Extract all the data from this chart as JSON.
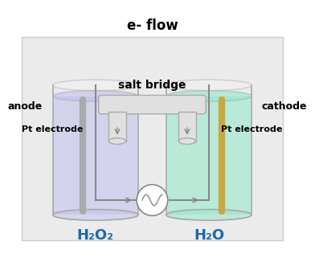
{
  "bg_color": "#ebebeb",
  "white_bg": "#ffffff",
  "left_liquid_color": "#c0c0f0",
  "right_liquid_color": "#90e8c8",
  "anode_label": "anode",
  "cathode_label": "cathode",
  "pt_electrode_left": "Pt electrode",
  "pt_electrode_right": "Pt electrode",
  "eflow_label": "e- flow",
  "saltbridge_label": "salt bridge",
  "left_formula": "H₂O₂",
  "right_formula": "H₂O",
  "formula_color": "#1a6aad",
  "wire_color": "#888888",
  "salt_bridge_color": "#e0e0e0",
  "salt_bridge_border": "#aaaaaa",
  "beaker_border": "#aaaaaa",
  "left_electrode_color": "#aaaaaa",
  "right_electrode_color": "#c8a840"
}
